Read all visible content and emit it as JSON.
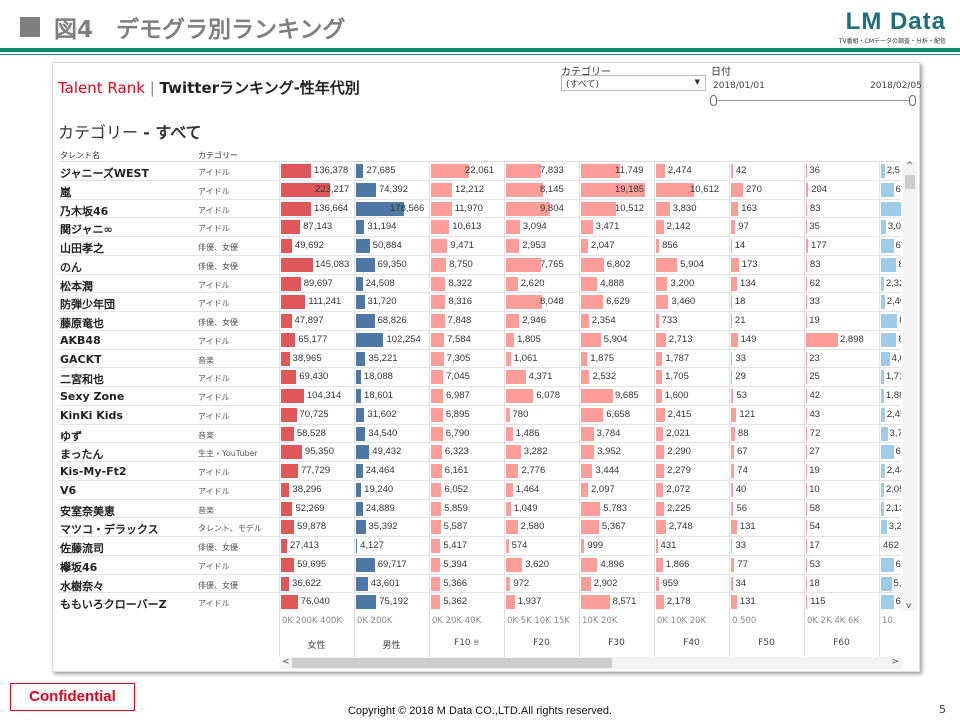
{
  "slide": {
    "title": "図4　デモグラ別ランキング",
    "logo": "LM Data",
    "logo_sub": "TV番組・CMデータの調査・分析・配信",
    "confidential": "Confidential",
    "copyright": "Copyright © 2018 M Data CO.,LTD.All rights reserved.",
    "page": "5"
  },
  "dashboard": {
    "brand": "Talent Rank",
    "sep": "|",
    "title": "Twitterランキング-性年代別",
    "category_heading": "カテゴリー",
    "category_value": "- すべて",
    "filter_label": "カテゴリー",
    "filter_value": "(すべて)",
    "date_label": "日付",
    "date_start": "2018/01/01",
    "date_end": "2018/02/05",
    "col_name": "タレント名",
    "col_category": "カテゴリー"
  },
  "columns": [
    {
      "name": "女性",
      "ticks": "0K  200K  400K",
      "color": "#e0575b"
    },
    {
      "name": "男性",
      "ticks": "0K      200K",
      "color": "#4e79a7"
    },
    {
      "name": "F10 ⩸",
      "ticks": "0K    20K    40K",
      "color": "#ff9d9a"
    },
    {
      "name": "F20",
      "ticks": "0K  5K  10K  15K",
      "color": "#ff9d9a"
    },
    {
      "name": "F30",
      "ticks": "  10K 20K",
      "color": "#ff9d9a"
    },
    {
      "name": "F40",
      "ticks": "0K    10K    20K",
      "color": "#ff9d9a"
    },
    {
      "name": "F50",
      "ticks": "0         500",
      "color": "#ff9d9a"
    },
    {
      "name": "F60",
      "ticks": "0K  2K   4K  6K",
      "color": "#ff9d9a"
    },
    {
      "name": "",
      "ticks": "10",
      "color": "#a0cbe8"
    }
  ],
  "rows": [
    {
      "name": "ジャニーズWEST",
      "cat": "アイドル",
      "v": [
        "136,378",
        "27,685",
        "22,061",
        "7,833",
        "11,749",
        "2,474",
        "42",
        "36",
        "2,5"
      ],
      "last_frac": 0.17
    },
    {
      "name": "嵐",
      "cat": "アイドル",
      "v": [
        "223,217",
        "74,392",
        "12,212",
        "8,145",
        "19,185",
        "10,612",
        "270",
        "204",
        "6,"
      ],
      "last_frac": 0.57
    },
    {
      "name": "乃木坂46",
      "cat": "アイドル",
      "v": [
        "136,664",
        "178,566",
        "11,970",
        "9,804",
        "10,512",
        "3,830",
        "163",
        "83",
        ""
      ],
      "last_frac": 1.0
    },
    {
      "name": "関ジャニ∞",
      "cat": "アイドル",
      "v": [
        "87,143",
        "31,194",
        "10,613",
        "3,094",
        "3,471",
        "2,142",
        "97",
        "35",
        "3,0"
      ],
      "last_frac": 0.22
    },
    {
      "name": "山田孝之",
      "cat": "俳優、女優",
      "v": [
        "49,692",
        "50,884",
        "9,471",
        "2,953",
        "2,047",
        "856",
        "14",
        "177",
        "6,"
      ],
      "last_frac": 0.57
    },
    {
      "name": "のん",
      "cat": "俳優、女優",
      "v": [
        "145,083",
        "69,350",
        "8,750",
        "7,765",
        "6,802",
        "5,904",
        "173",
        "83",
        "8"
      ],
      "last_frac": 0.7
    },
    {
      "name": "松本潤",
      "cat": "アイドル",
      "v": [
        "89,697",
        "24,508",
        "8,322",
        "2,620",
        "4,888",
        "3,200",
        "134",
        "62",
        "2,32"
      ],
      "last_frac": 0.13
    },
    {
      "name": "防弾少年団",
      "cat": "アイドル",
      "v": [
        "111,241",
        "31,720",
        "8,316",
        "8,048",
        "6,629",
        "3,460",
        "18",
        "33",
        "2,40"
      ],
      "last_frac": 0.17
    },
    {
      "name": "藤原竜也",
      "cat": "俳優、女優",
      "v": [
        "47,897",
        "68,826",
        "7,848",
        "2,946",
        "2,354",
        "733",
        "21",
        "19",
        "8"
      ],
      "last_frac": 0.74
    },
    {
      "name": "AKB48",
      "cat": "アイドル",
      "v": [
        "65,177",
        "102,254",
        "7,584",
        "1,805",
        "5,904",
        "2,713",
        "149",
        "2,898",
        "8"
      ],
      "last_frac": 0.7
    },
    {
      "name": "GACKT",
      "cat": "音楽",
      "v": [
        "38,965",
        "35,221",
        "7,305",
        "1,061",
        "1,875",
        "1,787",
        "33",
        "23",
        "4,6"
      ],
      "last_frac": 0.39
    },
    {
      "name": "二宮和也",
      "cat": "アイドル",
      "v": [
        "69,430",
        "18,088",
        "7,045",
        "4,371",
        "2,532",
        "1,705",
        "29",
        "25",
        "1,71"
      ],
      "last_frac": 0.13
    },
    {
      "name": "Sexy Zone",
      "cat": "アイドル",
      "v": [
        "104,314",
        "18,601",
        "6,987",
        "6,078",
        "9,685",
        "1,600",
        "53",
        "42",
        "1,88"
      ],
      "last_frac": 0.13
    },
    {
      "name": "KinKi Kids",
      "cat": "アイドル",
      "v": [
        "70,725",
        "31,602",
        "6,895",
        "780",
        "6,658",
        "2,415",
        "121",
        "43",
        "2,45"
      ],
      "last_frac": 0.17
    },
    {
      "name": "ゆず",
      "cat": "音楽",
      "v": [
        "58,528",
        "34,540",
        "6,790",
        "1,486",
        "3,784",
        "2,021",
        "88",
        "72",
        "3,7"
      ],
      "last_frac": 0.3
    },
    {
      "name": "まったん",
      "cat": "生主・YouTuber",
      "v": [
        "95,350",
        "49,432",
        "6,323",
        "3,282",
        "3,952",
        "2,290",
        "67",
        "27",
        "6,"
      ],
      "last_frac": 0.57
    },
    {
      "name": "Kis-My-Ft2",
      "cat": "アイドル",
      "v": [
        "77,729",
        "24,464",
        "6,161",
        "2,776",
        "3,444",
        "2,279",
        "74",
        "19",
        "2,44"
      ],
      "last_frac": 0.17
    },
    {
      "name": "V6",
      "cat": "アイドル",
      "v": [
        "38,296",
        "19,240",
        "6,052",
        "1,464",
        "2,097",
        "2,072",
        "40",
        "10",
        "2,05"
      ],
      "last_frac": 0.13
    },
    {
      "name": "安室奈美恵",
      "cat": "音楽",
      "v": [
        "52,269",
        "24,889",
        "5,859",
        "1,049",
        "5,783",
        "2,225",
        "56",
        "58",
        "2,13"
      ],
      "last_frac": 0.13
    },
    {
      "name": "マツコ・デラックス",
      "cat": "タレント、モデル",
      "v": [
        "59,878",
        "35,392",
        "5,587",
        "2,580",
        "5,367",
        "2,748",
        "131",
        "54",
        "3,2"
      ],
      "last_frac": 0.26
    },
    {
      "name": "佐藤流司",
      "cat": "俳優、女優",
      "v": [
        "27,413",
        "4,127",
        "5,417",
        "574",
        "999",
        "431",
        "33",
        "17",
        "462"
      ],
      "last_frac": 0.0
    },
    {
      "name": "欅坂46",
      "cat": "アイドル",
      "v": [
        "59,695",
        "69,717",
        "5,394",
        "3,620",
        "4,896",
        "1,866",
        "77",
        "53",
        "6,"
      ],
      "last_frac": 0.57
    },
    {
      "name": "水樹奈々",
      "cat": "俳優、女優",
      "v": [
        "36,622",
        "43,601",
        "5,366",
        "972",
        "2,902",
        "959",
        "34",
        "18",
        "5,"
      ],
      "last_frac": 0.48
    },
    {
      "name": "ももいろクローバーZ",
      "cat": "アイドル",
      "v": [
        "76,040",
        "75,192",
        "5,362",
        "1,937",
        "8,571",
        "2,178",
        "131",
        "115",
        "6,"
      ],
      "last_frac": 0.57
    }
  ]
}
